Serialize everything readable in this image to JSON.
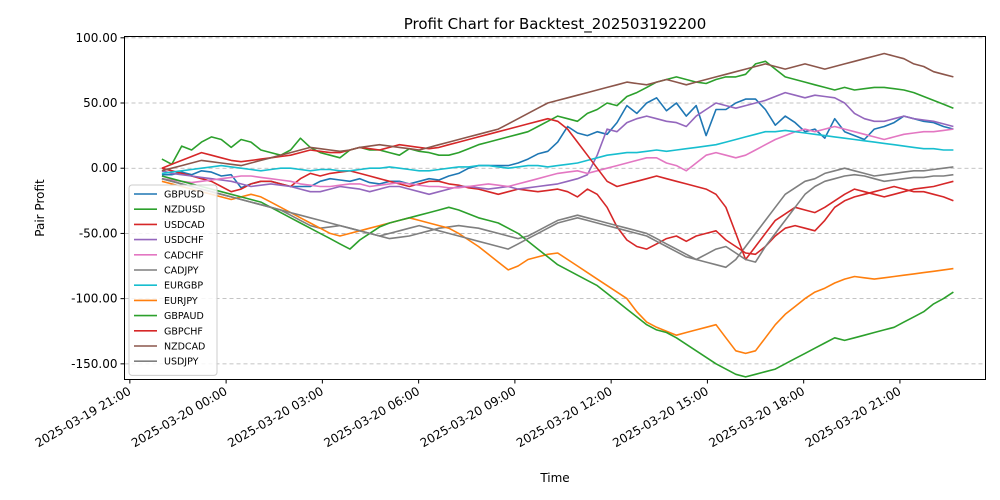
{
  "chart_data": {
    "type": "line",
    "title": "Profit Chart for Backtest_202503192200",
    "xlabel": "Time",
    "ylabel": "Pair Profit",
    "xlim": [
      "2025-03-19 20:50",
      "2025-03-20 23:40"
    ],
    "ylim": [
      -162,
      101
    ],
    "grid": "y-dashed",
    "legend_position": "lower-left",
    "x_start": "2025-03-19 22:00",
    "x_end": "2025-03-20 22:40",
    "x_ticks": [
      {
        "value": "2025-03-19 21:00",
        "label": "2025-03-19 21:00"
      },
      {
        "value": "2025-03-20 00:00",
        "label": "2025-03-20 00:00"
      },
      {
        "value": "2025-03-20 03:00",
        "label": "2025-03-20 03:00"
      },
      {
        "value": "2025-03-20 06:00",
        "label": "2025-03-20 06:00"
      },
      {
        "value": "2025-03-20 09:00",
        "label": "2025-03-20 09:00"
      },
      {
        "value": "2025-03-20 12:00",
        "label": "2025-03-20 12:00"
      },
      {
        "value": "2025-03-20 15:00",
        "label": "2025-03-20 15:00"
      },
      {
        "value": "2025-03-20 18:00",
        "label": "2025-03-20 18:00"
      },
      {
        "value": "2025-03-20 21:00",
        "label": "2025-03-20 21:00"
      }
    ],
    "y_ticks": [
      {
        "value": 100,
        "label": "100.00"
      },
      {
        "value": 50,
        "label": "50.00"
      },
      {
        "value": 0,
        "label": "0.00"
      },
      {
        "value": -50,
        "label": "-50.00"
      },
      {
        "value": -100,
        "label": "-100.00"
      },
      {
        "value": -150,
        "label": "-150.00"
      }
    ],
    "series": [
      {
        "name": "GBPUSD",
        "color": "#1f77b4",
        "y": [
          -5,
          -5,
          -3,
          -5,
          -2,
          -3,
          -6,
          -5,
          -15,
          -12,
          -10,
          -10,
          -12,
          -14,
          -14,
          -14,
          -10,
          -8,
          -9,
          -10,
          -8,
          -11,
          -12,
          -10,
          -10,
          -12,
          -10,
          -8,
          -9,
          -6,
          -4,
          0,
          2,
          2,
          2,
          2,
          4,
          7,
          11,
          13,
          20,
          32,
          27,
          25,
          28,
          26,
          35,
          48,
          42,
          50,
          54,
          44,
          50,
          40,
          48,
          25,
          45,
          45,
          50,
          53,
          53,
          45,
          33,
          40,
          35,
          28,
          30,
          23,
          38,
          28,
          25,
          22,
          30,
          32,
          35,
          40,
          38,
          36,
          35,
          32,
          30
        ]
      },
      {
        "name": "NZDUSD",
        "color": "#2ca02c",
        "y": [
          7,
          3,
          17,
          14,
          20,
          24,
          22,
          16,
          22,
          20,
          14,
          12,
          10,
          14,
          23,
          16,
          12,
          10,
          8,
          14,
          16,
          14,
          14,
          12,
          10,
          15,
          13,
          12,
          10,
          10,
          12,
          15,
          18,
          20,
          22,
          24,
          26,
          28,
          32,
          36,
          40,
          38,
          36,
          42,
          45,
          50,
          48,
          55,
          58,
          62,
          66,
          68,
          70,
          68,
          66,
          65,
          68,
          70,
          70,
          72,
          80,
          82,
          76,
          70,
          68,
          66,
          64,
          62,
          60,
          62,
          60,
          61,
          62,
          62,
          61,
          60,
          58,
          55,
          52,
          49,
          46
        ]
      },
      {
        "name": "USDCAD",
        "color": "#d62728",
        "y": [
          0,
          -2,
          -4,
          -6,
          -8,
          -10,
          -14,
          -18,
          -16,
          -12,
          -10,
          -10,
          -12,
          -14,
          -8,
          -4,
          -6,
          -4,
          -3,
          -2,
          -4,
          -6,
          -8,
          -10,
          -12,
          -14,
          -12,
          -10,
          -10,
          -12,
          -13,
          -15,
          -16,
          -18,
          -20,
          -18,
          -16,
          -17,
          -18,
          -17,
          -16,
          -18,
          -22,
          -16,
          -20,
          -30,
          -45,
          -55,
          -60,
          -62,
          -58,
          -54,
          -52,
          -56,
          -52,
          -50,
          -48,
          -55,
          -60,
          -65,
          -66,
          -60,
          -52,
          -46,
          -44,
          -46,
          -48,
          -40,
          -30,
          -25,
          -22,
          -20,
          -18,
          -16,
          -14,
          -16,
          -18,
          -18,
          -20,
          -22,
          -25
        ]
      },
      {
        "name": "USDCHF",
        "color": "#9467bd",
        "y": [
          -2,
          -4,
          -5,
          -6,
          -7,
          -8,
          -9,
          -10,
          -12,
          -14,
          -13,
          -12,
          -13,
          -14,
          -16,
          -18,
          -18,
          -16,
          -14,
          -15,
          -16,
          -18,
          -16,
          -14,
          -14,
          -16,
          -18,
          -20,
          -18,
          -16,
          -14,
          -14,
          -15,
          -16,
          -15,
          -14,
          -16,
          -15,
          -14,
          -13,
          -12,
          -10,
          -8,
          -5,
          10,
          30,
          28,
          35,
          38,
          40,
          38,
          36,
          35,
          32,
          40,
          45,
          50,
          48,
          46,
          48,
          50,
          52,
          55,
          58,
          56,
          54,
          56,
          55,
          54,
          50,
          42,
          38,
          36,
          36,
          38,
          40,
          38,
          37,
          36,
          34,
          32
        ]
      },
      {
        "name": "CADCHF",
        "color": "#e377c2",
        "y": [
          -8,
          -9,
          -10,
          -11,
          -10,
          -9,
          -8,
          -7,
          -6,
          -6,
          -7,
          -8,
          -9,
          -10,
          -12,
          -13,
          -14,
          -14,
          -13,
          -12,
          -12,
          -14,
          -13,
          -12,
          -11,
          -12,
          -13,
          -14,
          -14,
          -15,
          -15,
          -14,
          -13,
          -12,
          -13,
          -14,
          -12,
          -10,
          -8,
          -6,
          -4,
          -3,
          -2,
          -4,
          -2,
          0,
          2,
          4,
          6,
          8,
          8,
          4,
          2,
          -2,
          4,
          10,
          12,
          10,
          8,
          10,
          14,
          18,
          22,
          25,
          28,
          30,
          28,
          30,
          32,
          30,
          28,
          26,
          24,
          22,
          24,
          26,
          27,
          28,
          28,
          29,
          30
        ]
      },
      {
        "name": "CADJPY",
        "color": "#7f7f7f",
        "y": [
          -8,
          -10,
          -12,
          -14,
          -16,
          -18,
          -20,
          -22,
          -24,
          -26,
          -28,
          -30,
          -32,
          -36,
          -40,
          -44,
          -46,
          -45,
          -44,
          -46,
          -48,
          -50,
          -52,
          -54,
          -53,
          -52,
          -50,
          -48,
          -46,
          -45,
          -44,
          -45,
          -46,
          -48,
          -50,
          -52,
          -54,
          -52,
          -48,
          -44,
          -40,
          -38,
          -36,
          -38,
          -40,
          -42,
          -44,
          -46,
          -48,
          -50,
          -54,
          -58,
          -62,
          -66,
          -70,
          -72,
          -74,
          -76,
          -70,
          -60,
          -50,
          -40,
          -30,
          -20,
          -15,
          -10,
          -8,
          -4,
          -2,
          0,
          -2,
          -4,
          -6,
          -5,
          -4,
          -3,
          -2,
          -2,
          -1,
          0,
          1
        ]
      },
      {
        "name": "EURGBP",
        "color": "#17becf",
        "y": [
          -4,
          -3,
          -2,
          -1,
          0,
          1,
          2,
          1,
          0,
          -1,
          -2,
          -1,
          0,
          0,
          -1,
          -2,
          -1,
          -1,
          -2,
          -2,
          -1,
          0,
          0,
          1,
          0,
          -1,
          -2,
          -2,
          -1,
          0,
          1,
          1,
          2,
          2,
          1,
          0,
          1,
          2,
          2,
          1,
          2,
          3,
          4,
          6,
          8,
          10,
          11,
          12,
          12,
          13,
          14,
          13,
          14,
          15,
          16,
          17,
          18,
          20,
          22,
          24,
          26,
          28,
          28,
          29,
          28,
          27,
          26,
          25,
          24,
          23,
          22,
          21,
          20,
          19,
          18,
          17,
          16,
          15,
          15,
          14,
          14
        ]
      },
      {
        "name": "EURJPY",
        "color": "#ff7f0e",
        "y": [
          -10,
          -12,
          -14,
          -16,
          -18,
          -20,
          -22,
          -24,
          -22,
          -20,
          -22,
          -26,
          -30,
          -34,
          -38,
          -42,
          -46,
          -50,
          -52,
          -50,
          -48,
          -46,
          -44,
          -42,
          -40,
          -38,
          -40,
          -42,
          -44,
          -46,
          -50,
          -55,
          -60,
          -66,
          -72,
          -78,
          -75,
          -70,
          -68,
          -66,
          -65,
          -70,
          -75,
          -80,
          -85,
          -90,
          -95,
          -100,
          -110,
          -118,
          -122,
          -125,
          -128,
          -126,
          -124,
          -122,
          -120,
          -130,
          -140,
          -142,
          -140,
          -130,
          -120,
          -112,
          -106,
          -100,
          -95,
          -92,
          -88,
          -85,
          -83,
          -84,
          -85,
          -84,
          -83,
          -82,
          -81,
          -80,
          -79,
          -78,
          -77
        ]
      },
      {
        "name": "GBPAUD",
        "color": "#2ca02c",
        "y": [
          -6,
          -8,
          -10,
          -12,
          -14,
          -16,
          -18,
          -20,
          -22,
          -24,
          -26,
          -30,
          -34,
          -38,
          -42,
          -46,
          -50,
          -54,
          -58,
          -62,
          -55,
          -50,
          -45,
          -42,
          -40,
          -38,
          -36,
          -34,
          -32,
          -30,
          -32,
          -35,
          -38,
          -40,
          -42,
          -46,
          -50,
          -56,
          -62,
          -68,
          -74,
          -78,
          -82,
          -86,
          -90,
          -96,
          -102,
          -108,
          -114,
          -120,
          -124,
          -126,
          -130,
          -135,
          -140,
          -145,
          -150,
          -154,
          -158,
          -160,
          -158,
          -156,
          -154,
          -150,
          -146,
          -142,
          -138,
          -134,
          -130,
          -132,
          -130,
          -128,
          -126,
          -124,
          -122,
          -118,
          -114,
          -110,
          -104,
          -100,
          -95
        ]
      },
      {
        "name": "GBPCHF",
        "color": "#d62728",
        "y": [
          0,
          3,
          6,
          9,
          12,
          10,
          8,
          6,
          5,
          6,
          7,
          8,
          9,
          10,
          12,
          14,
          13,
          12,
          12,
          14,
          16,
          15,
          14,
          16,
          18,
          17,
          16,
          15,
          16,
          18,
          20,
          22,
          24,
          26,
          28,
          30,
          32,
          34,
          36,
          38,
          36,
          30,
          20,
          10,
          0,
          -10,
          -14,
          -12,
          -10,
          -8,
          -6,
          -8,
          -10,
          -12,
          -14,
          -16,
          -20,
          -30,
          -50,
          -70,
          -60,
          -50,
          -40,
          -35,
          -30,
          -32,
          -34,
          -30,
          -25,
          -20,
          -16,
          -18,
          -20,
          -22,
          -20,
          -18,
          -16,
          -15,
          -14,
          -12,
          -10
        ]
      },
      {
        "name": "NZDCAD",
        "color": "#8c564b",
        "y": [
          -2,
          0,
          2,
          4,
          6,
          5,
          4,
          3,
          2,
          4,
          6,
          8,
          10,
          12,
          14,
          16,
          15,
          14,
          13,
          14,
          16,
          17,
          18,
          17,
          16,
          15,
          14,
          16,
          18,
          20,
          22,
          24,
          26,
          28,
          30,
          34,
          38,
          42,
          46,
          50,
          52,
          54,
          56,
          58,
          60,
          62,
          64,
          66,
          65,
          64,
          66,
          68,
          66,
          64,
          66,
          68,
          70,
          72,
          74,
          76,
          78,
          80,
          78,
          76,
          78,
          80,
          78,
          76,
          78,
          80,
          82,
          84,
          86,
          88,
          86,
          84,
          80,
          78,
          74,
          72,
          70
        ]
      },
      {
        "name": "USDJPY",
        "color": "#7f7f7f",
        "y": [
          -8,
          -10,
          -12,
          -14,
          -16,
          -18,
          -20,
          -22,
          -24,
          -26,
          -28,
          -30,
          -32,
          -34,
          -36,
          -38,
          -40,
          -42,
          -44,
          -46,
          -48,
          -50,
          -52,
          -50,
          -48,
          -46,
          -44,
          -46,
          -48,
          -50,
          -52,
          -54,
          -56,
          -58,
          -60,
          -62,
          -58,
          -54,
          -50,
          -46,
          -42,
          -40,
          -38,
          -40,
          -42,
          -44,
          -46,
          -48,
          -50,
          -52,
          -56,
          -60,
          -64,
          -68,
          -70,
          -66,
          -62,
          -60,
          -65,
          -70,
          -72,
          -60,
          -50,
          -40,
          -30,
          -20,
          -14,
          -10,
          -8,
          -6,
          -5,
          -6,
          -8,
          -10,
          -9,
          -8,
          -7,
          -7,
          -6,
          -6,
          -5
        ]
      }
    ]
  }
}
